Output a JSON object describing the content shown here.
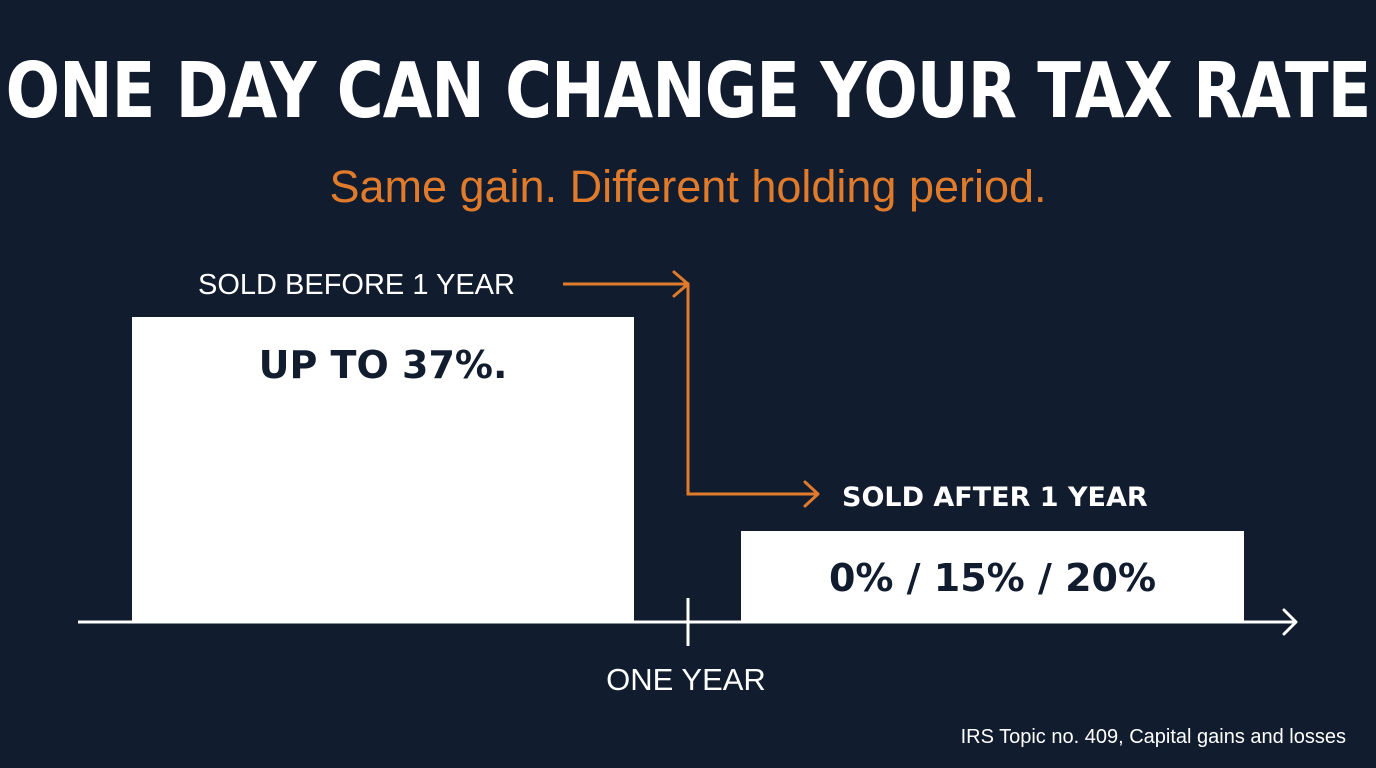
{
  "title": "ONE DAY CAN CHANGE YOUR TAX RATE",
  "subtitle": "Same gain. Different holding period.",
  "colors": {
    "background": "#111c2e",
    "accent": "#e07b2c",
    "bar": "#ffffff",
    "bar_text": "#111c2e"
  },
  "chart_data": {
    "type": "bar",
    "categories": [
      "SOLD BEFORE 1 YEAR",
      "SOLD AFTER 1 YEAR"
    ],
    "values": [
      37,
      20
    ],
    "data_labels": [
      "UP TO 37%.",
      "0% / 15% / 20%"
    ],
    "xlabel": "ONE YEAR",
    "ylabel": "",
    "grid": false,
    "annotations": [
      "arrow from SOLD BEFORE 1 YEAR to SOLD AFTER 1 YEAR"
    ]
  },
  "source": "IRS Topic no. 409, Capital gains and losses"
}
